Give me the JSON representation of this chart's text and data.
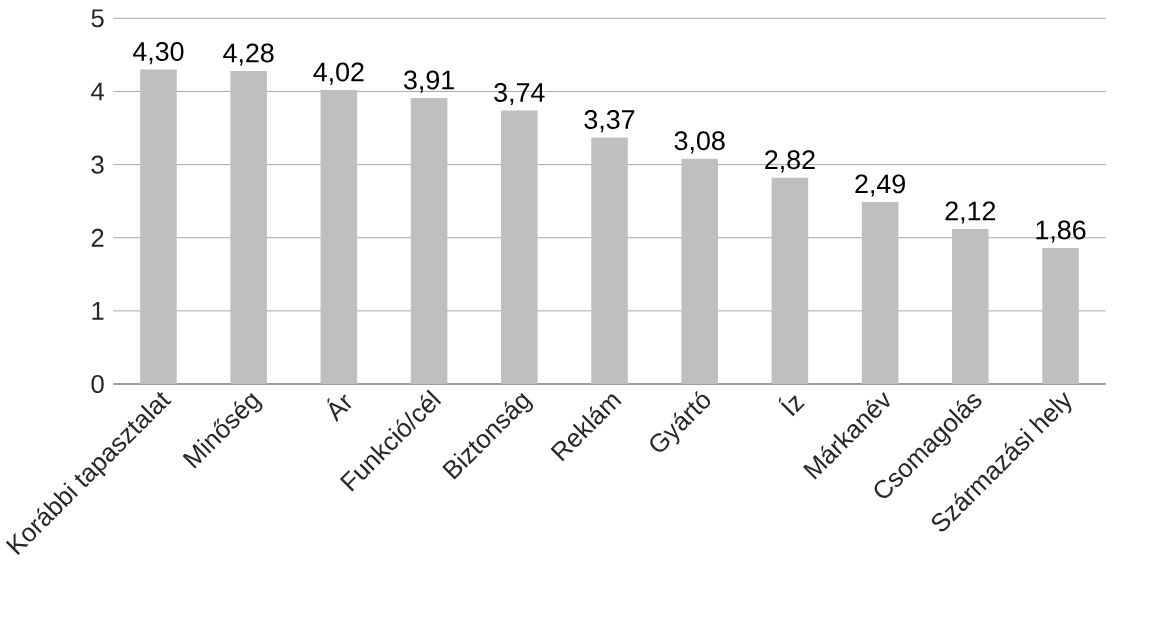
{
  "chart_data": {
    "type": "bar",
    "categories": [
      "Korábbi tapasztalat",
      "Minőség",
      "Ár",
      "Funkció/cél",
      "Biztonság",
      "Reklám",
      "Gyártó",
      "Íz",
      "Márkanév",
      "Csomagolás",
      "Származási hely"
    ],
    "values": [
      4.3,
      4.28,
      4.02,
      3.91,
      3.74,
      3.37,
      3.08,
      2.82,
      2.49,
      2.12,
      1.86
    ],
    "value_labels": [
      "4,30",
      "4,28",
      "4,02",
      "3,91",
      "3,74",
      "3,37",
      "3,08",
      "2,82",
      "2,49",
      "2,12",
      "1,86"
    ],
    "color": "#bfbfbf",
    "ylim": [
      0,
      5
    ],
    "yticks": [
      0,
      1,
      2,
      3,
      4,
      5
    ],
    "grid": "y"
  }
}
